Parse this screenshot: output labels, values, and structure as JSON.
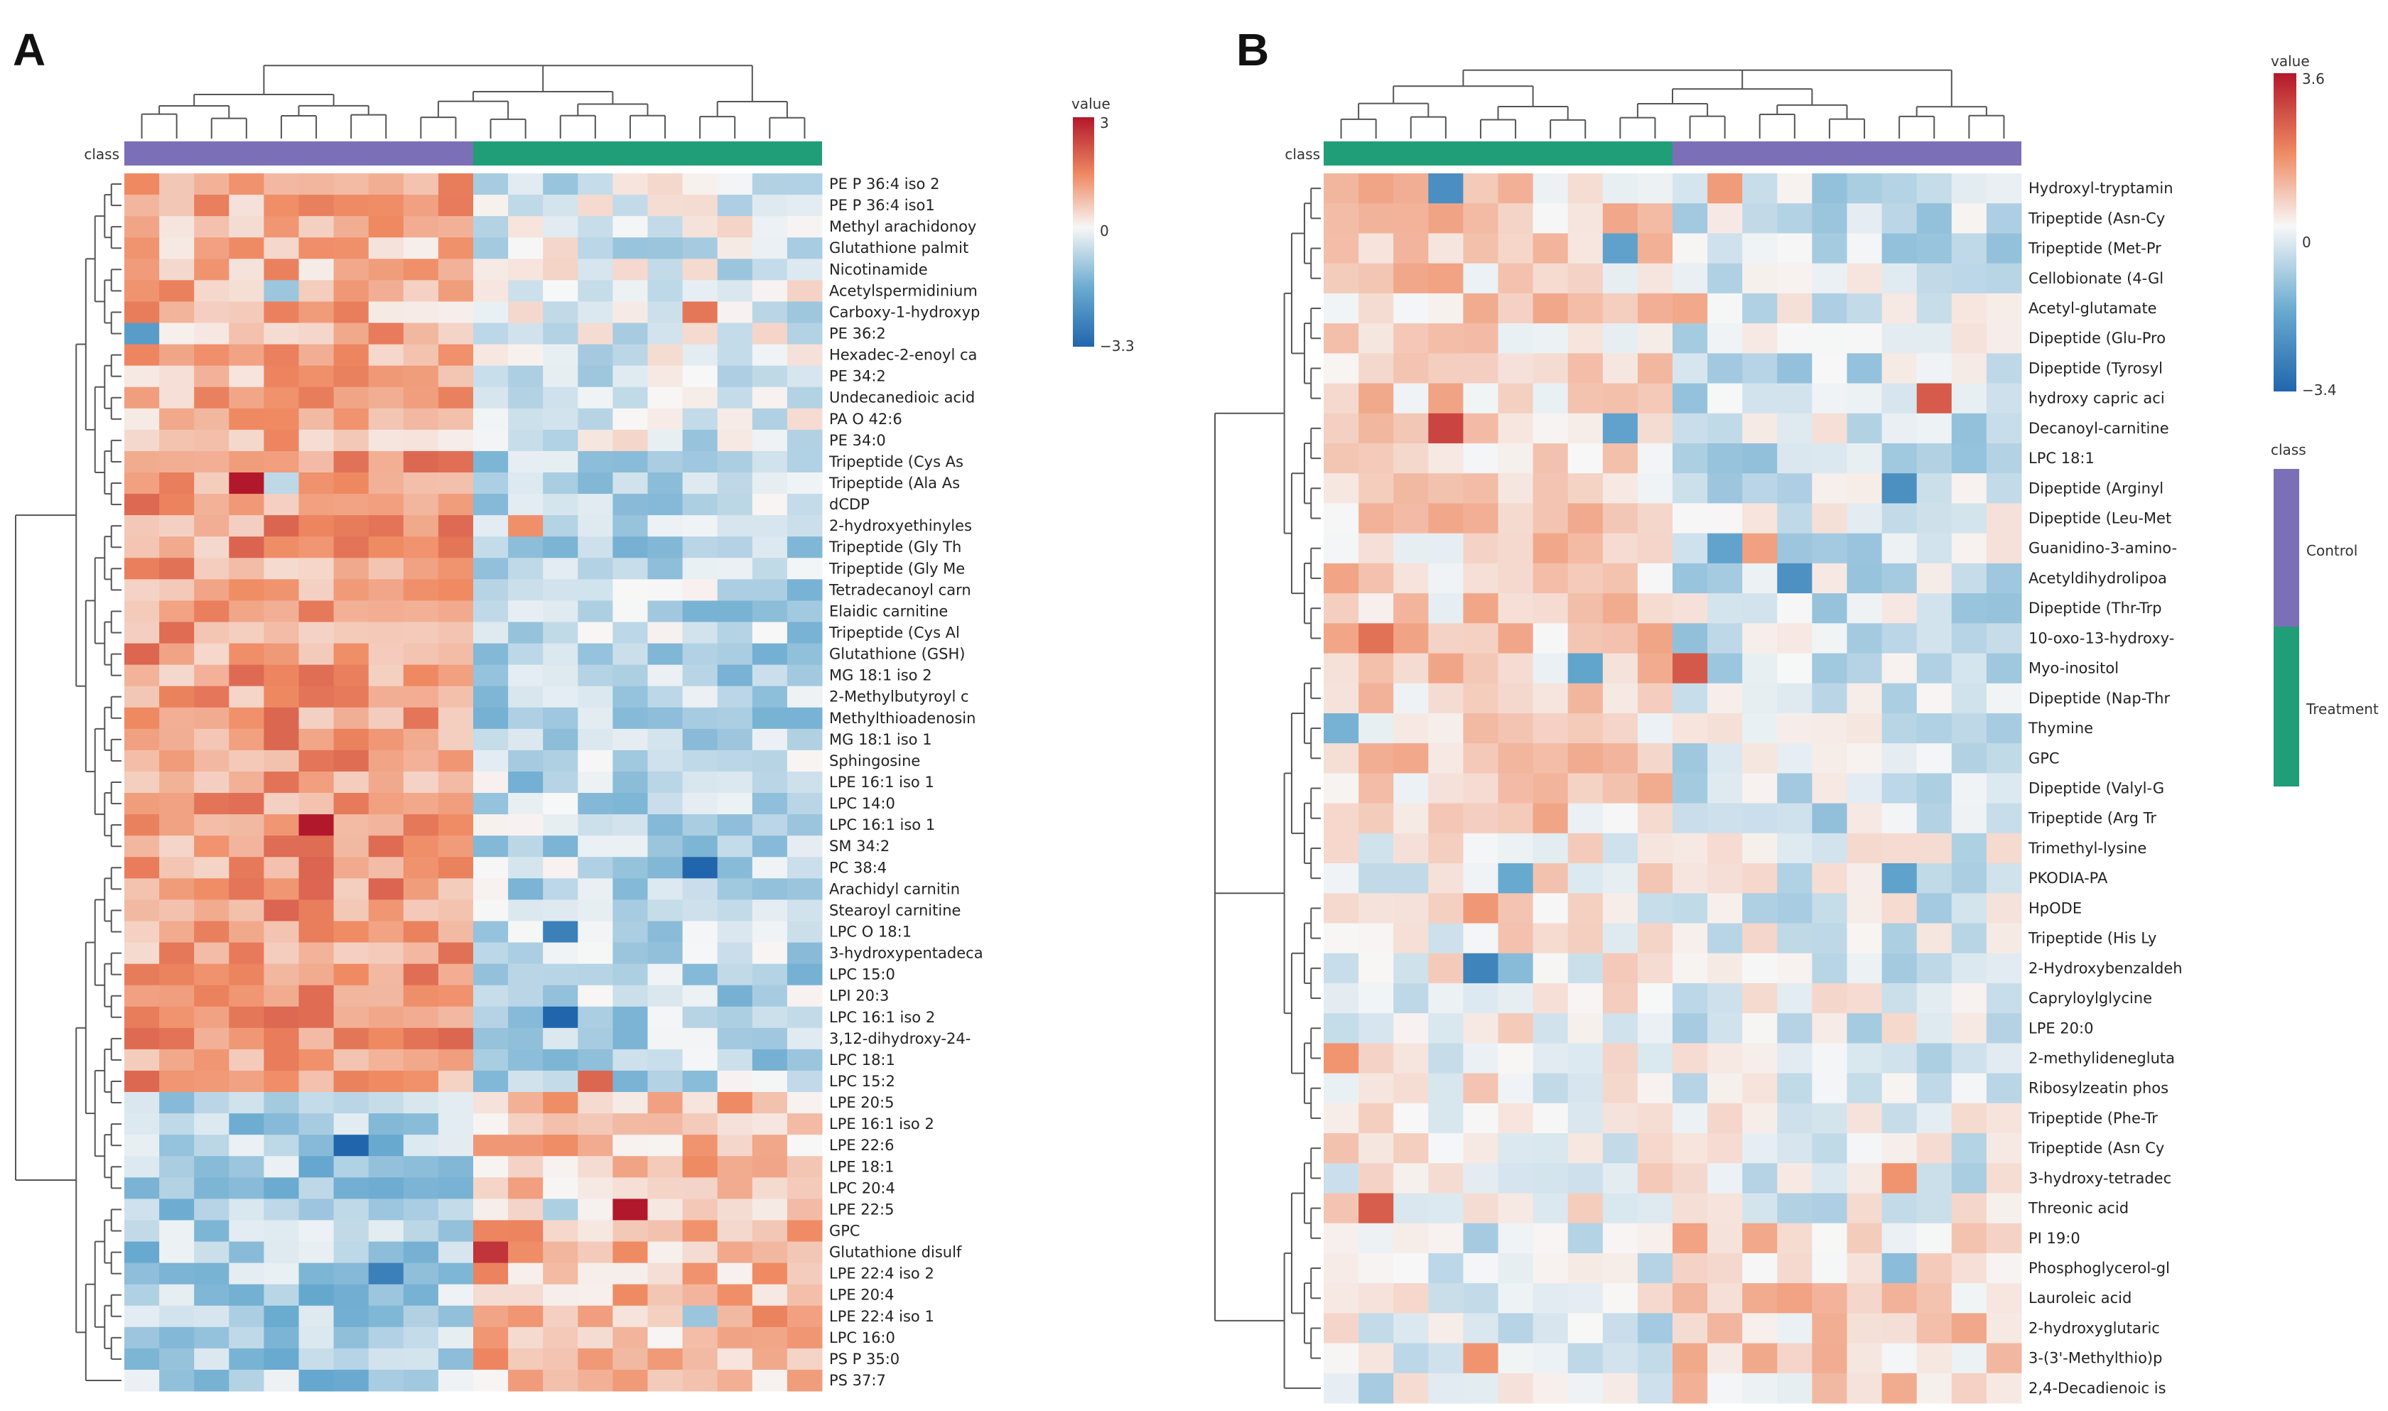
{
  "colors": {
    "low": "#2166ac",
    "mid": "#f7f7f7",
    "high": "#b2182b",
    "control": "#7b6fb8",
    "treatment": "#1f9e77",
    "dendrogram": "#555555"
  },
  "legend_class": {
    "title": "class",
    "items": [
      {
        "label": "Control",
        "color": "#7b6fb8"
      },
      {
        "label": "Treatment",
        "color": "#1f9e77"
      }
    ]
  },
  "chart_data": [
    {
      "type": "heatmap",
      "panel": "A",
      "class_label": "class",
      "column_classes": [
        {
          "name": "Control",
          "count": 10
        },
        {
          "name": "Treatment",
          "count": 10
        }
      ],
      "colorbar": {
        "title": "value",
        "max_label": "3",
        "mid_label": "0",
        "min_label": "−3.3",
        "vmin": -3.3,
        "vmax": 3
      },
      "rows": [
        "PE P 36:4 iso 2",
        "PE P 36:4 iso1",
        "Methyl arachidonoy",
        "Glutathione palmit",
        "Nicotinamide",
        "Acetylspermidinium",
        "Carboxy-1-hydroxyp",
        "PE 36:2",
        "Hexadec-2-enoyl ca",
        "PE 34:2",
        "Undecanedioic acid",
        "PA O 42:6",
        "PE 34:0",
        "Tripeptide (Cys As",
        "Tripeptide (Ala As",
        "dCDP",
        "2-hydroxyethinyles",
        "Tripeptide (Gly Th",
        "Tripeptide (Gly Me",
        "Tetradecanoyl carn",
        "Elaidic carnitine",
        "Tripeptide (Cys Al",
        "Glutathione (GSH)",
        "MG 18:1 iso 2",
        "2-Methylbutyroyl c",
        "Methylthioadenosin",
        "MG 18:1 iso 1",
        "Sphingosine",
        "LPE 16:1 iso 1",
        "LPC 14:0",
        "LPC 16:1 iso 1",
        "SM 34:2",
        "PC 38:4",
        "Arachidyl carnitin",
        "Stearoyl carnitine",
        "LPC O 18:1",
        "3-hydroxypentadeca",
        "LPC 15:0",
        "LPI 20:3",
        "LPC 16:1 iso 2",
        "3,12-dihydroxy-24-",
        "LPC 18:1",
        "LPC 15:2",
        "LPE 20:5",
        "LPE 16:1 iso 2",
        "LPE 22:6",
        "LPE 18:1",
        "LPC 20:4",
        "LPE 22:5",
        "GPC",
        "Glutathione disulf",
        "LPE 22:4 iso 2",
        "LPE 20:4",
        "LPE 22:4 iso 1",
        "LPC 16:0",
        "PS P 35:0",
        "PS 37:7"
      ]
    },
    {
      "type": "heatmap",
      "panel": "B",
      "class_label": "class",
      "column_classes": [
        {
          "name": "Treatment",
          "count": 10
        },
        {
          "name": "Control",
          "count": 10
        }
      ],
      "colorbar": {
        "title": "value",
        "max_label": "3.6",
        "mid_label": "0",
        "min_label": "−3.4",
        "vmin": -3.4,
        "vmax": 3.6
      },
      "rows": [
        "Hydroxyl-tryptamin",
        "Tripeptide (Asn-Cy",
        "Tripeptide (Met-Pr",
        "Cellobionate (4-Gl",
        "Acetyl-glutamate",
        "Dipeptide (Glu-Pro",
        "Dipeptide (Tyrosyl",
        "hydroxy capric aci",
        "Decanoyl-carnitine",
        "LPC 18:1",
        "Dipeptide (Arginyl",
        "Dipeptide (Leu-Met",
        "Guanidino-3-amino-",
        "Acetyldihydrolipoa",
        "Dipeptide (Thr-Trp",
        "10-oxo-13-hydroxy-",
        "Myo-inositol",
        "Dipeptide (Nap-Thr",
        "Thymine",
        "GPC",
        "Dipeptide (Valyl-G",
        "Tripeptide (Arg Tr",
        "Trimethyl-lysine",
        "PKODIA-PA",
        "HpODE",
        "Tripeptide (His Ly",
        "2-Hydroxybenzaldeh",
        "Capryloylglycine",
        "LPE 20:0",
        "2-methylidenegluta",
        "Ribosylzeatin phos",
        "Tripeptide (Phe-Tr",
        "Tripeptide (Asn Cy",
        "3-hydroxy-tetradec",
        "Threonic acid",
        "PI 19:0",
        "Phosphoglycerol-gl",
        "Lauroleic acid",
        "2-hydroxyglutaric",
        "3-(3'-Methylthio)p",
        "2,4-Decadienoic is"
      ]
    }
  ]
}
